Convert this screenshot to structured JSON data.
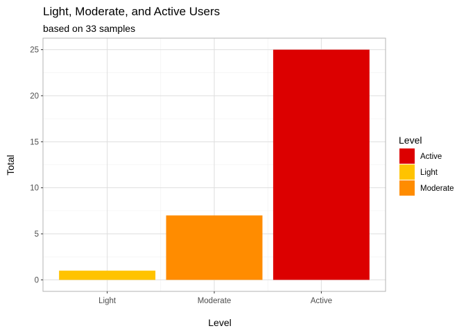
{
  "chart_data": {
    "type": "bar",
    "title": "Light, Moderate, and Active Users",
    "subtitle": "based on 33 samples",
    "xlabel": "Level",
    "ylabel": "Total",
    "categories": [
      "Light",
      "Moderate",
      "Active"
    ],
    "values": [
      1,
      7,
      25
    ],
    "bar_colors": [
      "#FFC300",
      "#FF8C00",
      "#DC0000"
    ],
    "ylim": [
      -1.25,
      26.25
    ],
    "yticks": [
      0,
      5,
      10,
      15,
      20,
      25
    ],
    "grid": true,
    "legend": {
      "title": "Level",
      "position": "right",
      "entries": [
        {
          "label": "Active",
          "color": "#DC0000"
        },
        {
          "label": "Light",
          "color": "#FFC300"
        },
        {
          "label": "Moderate",
          "color": "#FF8C00"
        }
      ]
    }
  }
}
